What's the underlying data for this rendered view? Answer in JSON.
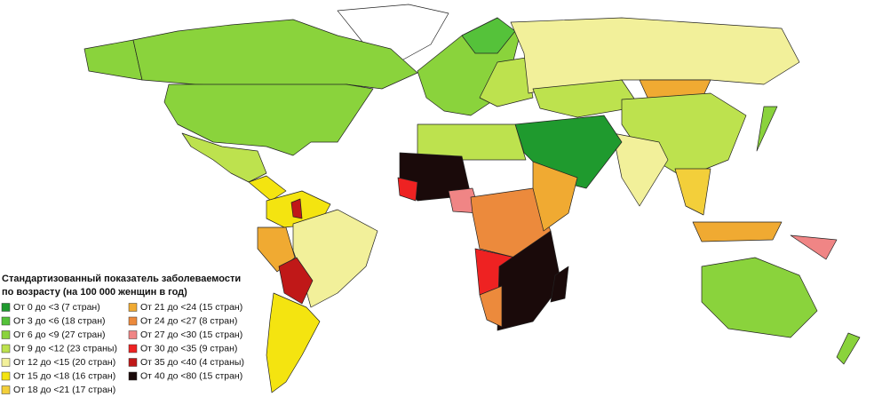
{
  "legend": {
    "title": [
      "Стандартизованный  показатель заболеваемости",
      "по возрасту (на 100 000 женщин в год)"
    ],
    "items": [
      {
        "label": "От 0 до <3 (7 стран)",
        "color": "#1f9a2e"
      },
      {
        "label": "От 3 до <6 (18 стран)",
        "color": "#55c23a"
      },
      {
        "label": "От 6 до <9 (27 стран)",
        "color": "#8ad33c"
      },
      {
        "label": "От 9 до <12 (23 страны)",
        "color": "#bde24e"
      },
      {
        "label": "От 12 до <15 (20 стран)",
        "color": "#f2f09a"
      },
      {
        "label": "От 15 до <18 (16 стран)",
        "color": "#f4e410"
      },
      {
        "label": "От 18 до <21 (17 стран)",
        "color": "#f3cf3a"
      },
      {
        "label": "От 21 до <24 (15 стран)",
        "color": "#f0aa32"
      },
      {
        "label": "От 24 до <27 (8 стран)",
        "color": "#ec8a3c"
      },
      {
        "label": "От 27 до <30 (15 стран)",
        "color": "#f08585"
      },
      {
        "label": "От 30 до <35 (9 стран)",
        "color": "#ee2222"
      },
      {
        "label": "От 35 до <40 (4 страны)",
        "color": "#c01818"
      },
      {
        "label": "От 40 до <80 (15 стран)",
        "color": "#1a0a0a"
      }
    ]
  }
}
